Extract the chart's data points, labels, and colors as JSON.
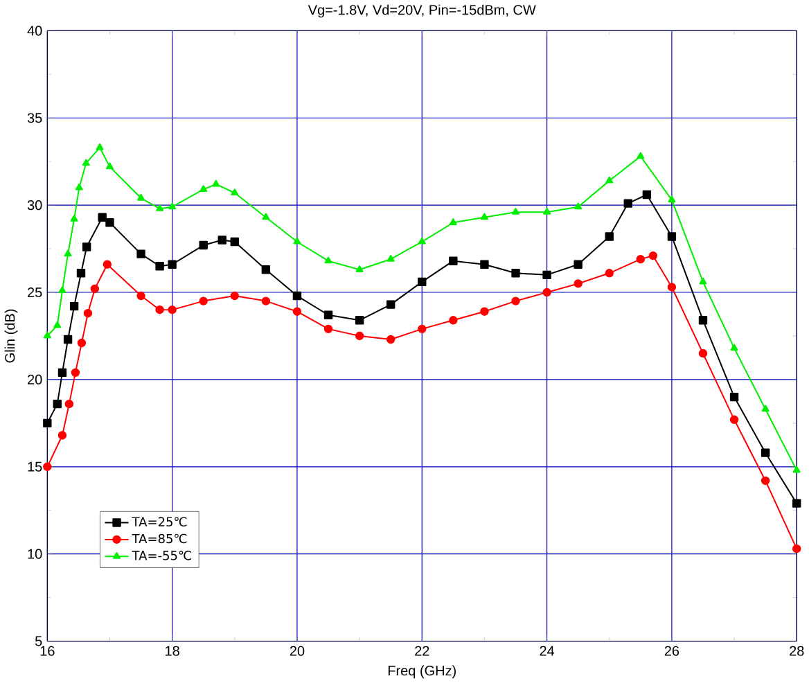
{
  "chart_data": {
    "type": "line",
    "title": "Vg=-1.8V, Vd=20V, Pin=-15dBm, CW",
    "xlabel": "Freq (GHz)",
    "ylabel": "Glin (dB)",
    "xlim": [
      16,
      28
    ],
    "xticks": [
      16,
      18,
      20,
      22,
      24,
      26,
      28
    ],
    "ylim": [
      5,
      40
    ],
    "yticks": [
      5,
      10,
      15,
      20,
      25,
      30,
      35,
      40
    ],
    "grid": true,
    "legend": "bottom left",
    "line_style": "solid",
    "series": [
      {
        "name": "TA=25℃",
        "color": "#000000",
        "marker": "square",
        "x": [
          16.0,
          16.16,
          16.24,
          16.33,
          16.43,
          16.54,
          16.63,
          16.88,
          17.0,
          17.5,
          17.8,
          18.0,
          18.5,
          18.8,
          19.0,
          19.5,
          20.0,
          20.5,
          21.0,
          21.5,
          22.0,
          22.5,
          23.0,
          23.5,
          24.0,
          24.5,
          25.0,
          25.3,
          25.6,
          26.0,
          26.5,
          27.0,
          27.5,
          28.0
        ],
        "values": [
          17.5,
          18.6,
          20.4,
          22.3,
          24.2,
          26.1,
          27.6,
          29.3,
          29.0,
          27.2,
          26.5,
          26.6,
          27.7,
          28.0,
          27.9,
          26.3,
          24.8,
          23.7,
          23.4,
          24.3,
          25.6,
          26.8,
          26.6,
          26.1,
          26.0,
          26.6,
          28.2,
          30.1,
          30.6,
          28.2,
          23.4,
          19.0,
          15.8,
          12.9
        ]
      },
      {
        "name": "TA=85℃",
        "color": "#ff0000",
        "marker": "circle",
        "x": [
          16.0,
          16.24,
          16.35,
          16.45,
          16.55,
          16.65,
          16.76,
          16.96,
          17.5,
          17.8,
          18.0,
          18.5,
          19.0,
          19.5,
          20.0,
          20.5,
          21.0,
          21.5,
          22.0,
          22.5,
          23.0,
          23.5,
          24.0,
          24.5,
          25.0,
          25.5,
          25.7,
          26.0,
          26.5,
          27.0,
          27.5,
          28.0
        ],
        "values": [
          15.0,
          16.8,
          18.6,
          20.4,
          22.1,
          23.8,
          25.2,
          26.6,
          24.8,
          24.0,
          24.0,
          24.5,
          24.8,
          24.5,
          23.9,
          22.9,
          22.5,
          22.3,
          22.9,
          23.4,
          23.9,
          24.5,
          25.0,
          25.5,
          26.1,
          26.9,
          27.1,
          25.3,
          21.5,
          17.7,
          14.2,
          10.3
        ]
      },
      {
        "name": "TA=-55℃",
        "color": "#00ee00",
        "marker": "triangle",
        "x": [
          16.0,
          16.16,
          16.24,
          16.33,
          16.43,
          16.51,
          16.62,
          16.84,
          17.0,
          17.5,
          17.8,
          18.0,
          18.5,
          18.7,
          19.0,
          19.5,
          20.0,
          20.5,
          21.0,
          21.5,
          22.0,
          22.5,
          23.0,
          23.5,
          24.0,
          24.5,
          25.0,
          25.5,
          26.0,
          26.5,
          27.0,
          27.5,
          28.0
        ],
        "values": [
          22.5,
          23.1,
          25.1,
          27.2,
          29.2,
          31.0,
          32.4,
          33.3,
          32.2,
          30.4,
          29.8,
          29.9,
          30.9,
          31.2,
          30.7,
          29.3,
          27.9,
          26.8,
          26.3,
          26.9,
          27.9,
          29.0,
          29.3,
          29.6,
          29.6,
          29.9,
          31.4,
          32.8,
          30.3,
          25.6,
          21.8,
          18.3,
          14.8
        ]
      }
    ]
  }
}
